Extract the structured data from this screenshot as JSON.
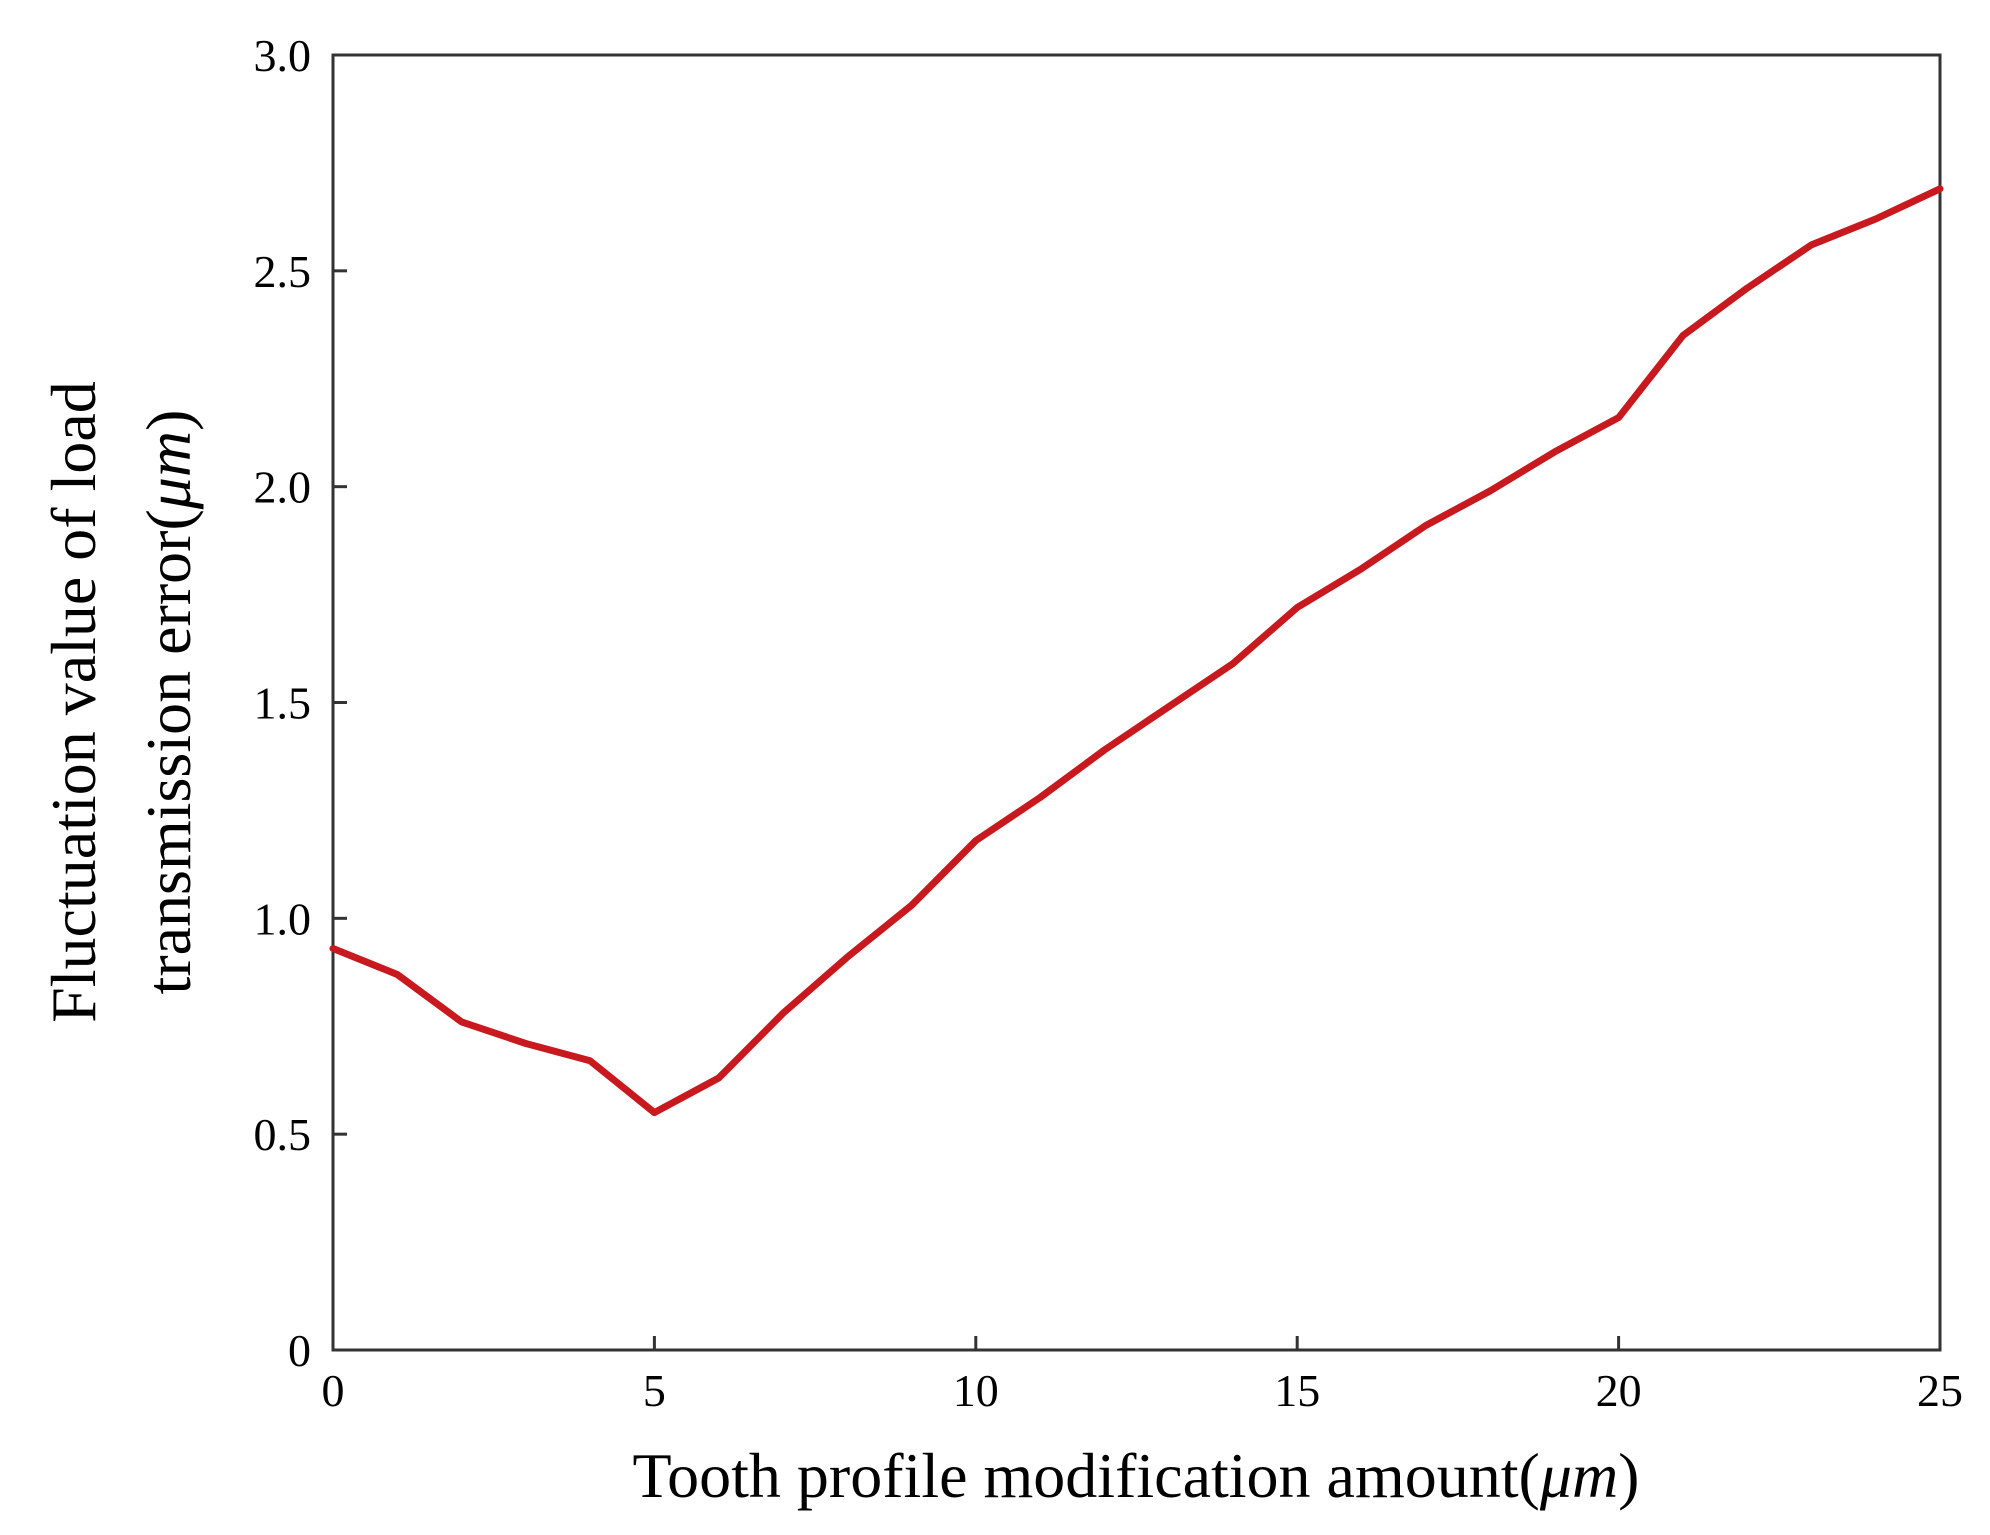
{
  "chart_data": {
    "type": "line",
    "title": "",
    "xlabel": "Tooth profile modification amount(",
    "xlabel_unit": "μm",
    "xlabel_close": ")",
    "ylabel_line1": "Fluctuation value of load",
    "ylabel_line2": "transmission error(",
    "ylabel_unit": "μm",
    "ylabel_close": ")",
    "xlim": [
      0,
      25
    ],
    "ylim": [
      0,
      3.0
    ],
    "x_ticks": [
      0,
      5,
      10,
      15,
      20,
      25
    ],
    "x_tick_labels": [
      "0",
      "5",
      "10",
      "15",
      "20",
      "25"
    ],
    "y_ticks": [
      0,
      0.5,
      1.0,
      1.5,
      2.0,
      2.5,
      3.0
    ],
    "y_tick_labels": [
      "0",
      "0.5",
      "1.0",
      "1.5",
      "2.0",
      "2.5",
      "3.0"
    ],
    "grid": false,
    "series": [
      {
        "color": "#c8191e",
        "x": [
          0,
          1,
          2,
          3,
          4,
          5,
          6,
          7,
          8,
          9,
          10,
          11,
          12,
          13,
          14,
          15,
          16,
          17,
          18,
          19,
          20,
          21,
          22,
          23,
          24,
          25
        ],
        "y": [
          0.93,
          0.87,
          0.76,
          0.71,
          0.67,
          0.55,
          0.63,
          0.78,
          0.91,
          1.03,
          1.18,
          1.28,
          1.39,
          1.49,
          1.59,
          1.72,
          1.81,
          1.91,
          1.99,
          2.08,
          2.16,
          2.35,
          2.46,
          2.56,
          2.62,
          2.69
        ]
      }
    ]
  }
}
